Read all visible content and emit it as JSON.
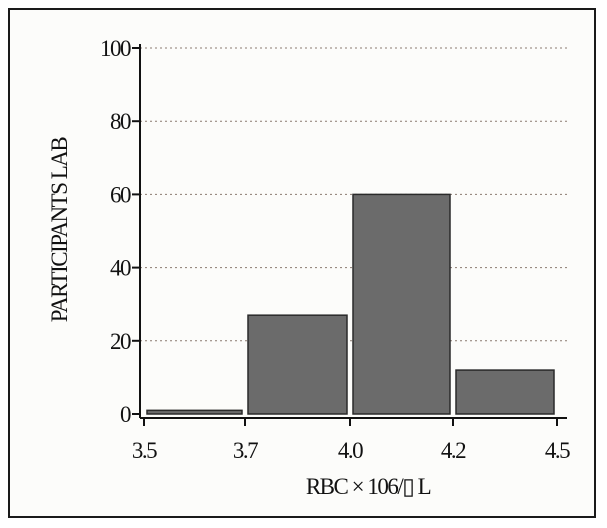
{
  "chart_data": {
    "type": "bar",
    "title": "",
    "xlabel": "RBC × 106/▯ L",
    "ylabel": "PARTICIPANTS LAB",
    "x_tick_labels": [
      "3.5",
      "3.7",
      "4.0",
      "4.2",
      "4.5"
    ],
    "y_tick_labels": [
      "100",
      "80",
      "60",
      "40",
      "20",
      "0"
    ],
    "y_ticks": [
      100,
      80,
      60,
      40,
      20,
      0
    ],
    "ylim": [
      0,
      100
    ],
    "bins": [
      {
        "from": "3.5",
        "to": "3.7",
        "value": 1
      },
      {
        "from": "3.7",
        "to": "4.0",
        "value": 27
      },
      {
        "from": "4.0",
        "to": "4.2",
        "value": 60
      },
      {
        "from": "4.2",
        "to": "4.5",
        "value": 12
      }
    ],
    "grid": true,
    "colors": {
      "bar_fill": "#6b6b6b",
      "bar_stroke": "#2a2a2a",
      "grid": "#8a7a70",
      "axis": "#111111"
    }
  }
}
